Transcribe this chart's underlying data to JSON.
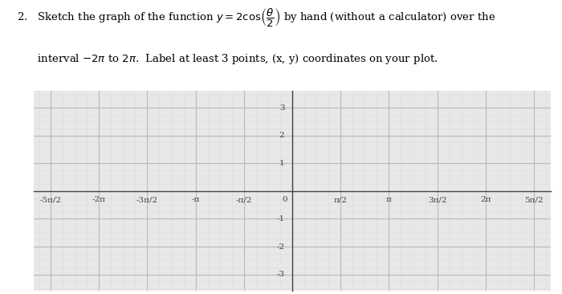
{
  "xlim": [
    -8.4,
    8.4
  ],
  "ylim": [
    -3.6,
    3.6
  ],
  "yticks": [
    -3,
    -2,
    -1,
    1,
    2,
    3
  ],
  "xtick_positions": [
    -7.853981633974483,
    -6.283185307179586,
    -4.71238898038469,
    -3.141592653589793,
    -1.5707963267948966,
    0,
    1.5707963267948966,
    3.141592653589793,
    4.71238898038469,
    6.283185307179586,
    7.853981633974483
  ],
  "xtick_labels": [
    "-5π/2",
    "-2π",
    "-3π/2",
    "-π",
    "-π/2",
    "0",
    "π/2",
    "π",
    "3π/2",
    "2π",
    "5π/2"
  ],
  "grid_major_color": "#bbbbbb",
  "grid_minor_color": "#dddddd",
  "axis_color": "#444444",
  "plot_bg_color": "#e8e8e8",
  "fig_bg_color": "#ffffff",
  "font_size_text": 9.5,
  "font_size_ticks": 7.5,
  "line1": "2.   Sketch the graph of the function $y = 2\\cos\\!\\left(\\dfrac{\\theta}{2}\\right)$ by hand (without a calculator) over the",
  "line2": "      interval $-2\\pi$ to $2\\pi$.  Label at least 3 points, (x, y) coordinates on your plot."
}
